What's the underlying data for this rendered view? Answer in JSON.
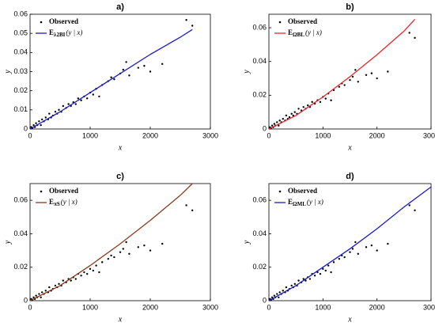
{
  "chart_data": [
    {
      "type": "scatter",
      "title": "a)",
      "xlabel": "x",
      "ylabel": "y",
      "xlim": [
        0,
        3000
      ],
      "ylim": [
        0,
        0.06
      ],
      "xticks": [
        0,
        1000,
        2000,
        3000
      ],
      "yticks": [
        0,
        0.01,
        0.02,
        0.03,
        0.04,
        0.05,
        0.06
      ],
      "series": [
        {
          "name": "Observed",
          "color": "#000000",
          "style": "points",
          "x": [
            20,
            40,
            60,
            80,
            100,
            120,
            150,
            180,
            200,
            230,
            260,
            300,
            320,
            350,
            380,
            420,
            450,
            480,
            520,
            550,
            600,
            640,
            680,
            720,
            760,
            800,
            850,
            900,
            950,
            1000,
            1050,
            1100,
            1150,
            1200,
            1300,
            1350,
            1400,
            1500,
            1550,
            1600,
            1650,
            1800,
            1900,
            2000,
            2200,
            2600,
            2700
          ],
          "values": [
            0.001,
            0.0005,
            0.002,
            0.001,
            0.003,
            0.002,
            0.004,
            0.002,
            0.005,
            0.004,
            0.006,
            0.005,
            0.008,
            0.006,
            0.007,
            0.009,
            0.008,
            0.01,
            0.009,
            0.012,
            0.011,
            0.013,
            0.012,
            0.014,
            0.013,
            0.016,
            0.015,
            0.017,
            0.016,
            0.019,
            0.018,
            0.021,
            0.017,
            0.023,
            0.025,
            0.027,
            0.026,
            0.029,
            0.031,
            0.035,
            0.028,
            0.032,
            0.033,
            0.03,
            0.034,
            0.057,
            0.054
          ]
        },
        {
          "name": "E",
          "name_sub": "λ2BI",
          "name_suffix": "(y | x)",
          "color": "#1a1acc",
          "style": "line",
          "x": [
            0,
            500,
            1000,
            1500,
            2000,
            2500,
            2700
          ],
          "values": [
            0,
            0.009,
            0.019,
            0.029,
            0.039,
            0.048,
            0.052
          ]
        }
      ]
    },
    {
      "type": "scatter",
      "title": "b)",
      "xlabel": "x",
      "ylabel": "y",
      "xlim": [
        0,
        3000
      ],
      "ylim": [
        0,
        0.068
      ],
      "xticks": [
        0,
        1000,
        2000,
        3000
      ],
      "yticks": [
        0,
        0.02,
        0.04,
        0.06
      ],
      "series": [
        {
          "name": "Observed",
          "color": "#000000",
          "style": "points",
          "x": [
            20,
            40,
            60,
            80,
            100,
            120,
            150,
            180,
            200,
            230,
            260,
            300,
            320,
            350,
            380,
            420,
            450,
            480,
            520,
            550,
            600,
            640,
            680,
            720,
            760,
            800,
            850,
            900,
            950,
            1000,
            1050,
            1100,
            1150,
            1200,
            1300,
            1350,
            1400,
            1500,
            1550,
            1600,
            1650,
            1800,
            1900,
            2000,
            2200,
            2600,
            2700
          ],
          "values": [
            0.001,
            0.0005,
            0.002,
            0.001,
            0.003,
            0.002,
            0.004,
            0.002,
            0.005,
            0.004,
            0.006,
            0.005,
            0.008,
            0.006,
            0.007,
            0.009,
            0.008,
            0.01,
            0.009,
            0.012,
            0.011,
            0.013,
            0.012,
            0.014,
            0.013,
            0.016,
            0.015,
            0.017,
            0.016,
            0.019,
            0.018,
            0.021,
            0.017,
            0.023,
            0.025,
            0.027,
            0.026,
            0.029,
            0.031,
            0.035,
            0.028,
            0.032,
            0.033,
            0.03,
            0.034,
            0.057,
            0.054
          ]
        },
        {
          "name": "E",
          "name_sub": "ΩBL",
          "name_suffix": "(y | x)",
          "color": "#e8262b",
          "style": "line",
          "x": [
            0,
            500,
            1000,
            1500,
            2000,
            2500,
            2700
          ],
          "values": [
            0,
            0.008,
            0.019,
            0.031,
            0.044,
            0.058,
            0.065
          ]
        }
      ]
    },
    {
      "type": "scatter",
      "title": "c)",
      "xlabel": "x",
      "ylabel": "y",
      "xlim": [
        0,
        3000
      ],
      "ylim": [
        0,
        0.07
      ],
      "xticks": [
        0,
        1000,
        2000,
        3000
      ],
      "yticks": [
        0,
        0.02,
        0.04,
        0.06
      ],
      "series": [
        {
          "name": "Observed",
          "color": "#000000",
          "style": "points",
          "x": [
            20,
            40,
            60,
            80,
            100,
            120,
            150,
            180,
            200,
            230,
            260,
            300,
            320,
            350,
            380,
            420,
            450,
            480,
            520,
            550,
            600,
            640,
            680,
            720,
            760,
            800,
            850,
            900,
            950,
            1000,
            1050,
            1100,
            1150,
            1200,
            1300,
            1350,
            1400,
            1500,
            1550,
            1600,
            1650,
            1800,
            1900,
            2000,
            2200,
            2600,
            2700
          ],
          "values": [
            0.001,
            0.0005,
            0.002,
            0.001,
            0.003,
            0.002,
            0.004,
            0.002,
            0.005,
            0.004,
            0.006,
            0.005,
            0.008,
            0.006,
            0.007,
            0.009,
            0.008,
            0.01,
            0.009,
            0.012,
            0.011,
            0.013,
            0.012,
            0.014,
            0.013,
            0.016,
            0.015,
            0.017,
            0.016,
            0.019,
            0.018,
            0.021,
            0.017,
            0.023,
            0.025,
            0.027,
            0.026,
            0.029,
            0.031,
            0.035,
            0.028,
            0.032,
            0.033,
            0.03,
            0.034,
            0.057,
            0.054
          ]
        },
        {
          "name": "E",
          "name_sub": "πS",
          "name_suffix": "(y | x)",
          "color": "#8b3a1a",
          "style": "line",
          "x": [
            0,
            500,
            1000,
            1500,
            2000,
            2500,
            2700
          ],
          "values": [
            0,
            0.009,
            0.021,
            0.034,
            0.048,
            0.063,
            0.07
          ]
        }
      ]
    },
    {
      "type": "scatter",
      "title": "d)",
      "xlabel": "x",
      "ylabel": "y",
      "xlim": [
        0,
        3000
      ],
      "ylim": [
        0,
        0.07
      ],
      "xticks": [
        0,
        1000,
        2000,
        3000
      ],
      "yticks": [
        0,
        0.02,
        0.04,
        0.06
      ],
      "series": [
        {
          "name": "Observed",
          "color": "#000000",
          "style": "points",
          "x": [
            20,
            40,
            60,
            80,
            100,
            120,
            150,
            180,
            200,
            230,
            260,
            300,
            320,
            350,
            380,
            420,
            450,
            480,
            520,
            550,
            600,
            640,
            680,
            720,
            760,
            800,
            850,
            900,
            950,
            1000,
            1050,
            1100,
            1150,
            1200,
            1300,
            1350,
            1400,
            1500,
            1550,
            1600,
            1650,
            1800,
            1900,
            2000,
            2200,
            2600,
            2700
          ],
          "values": [
            0.001,
            0.0005,
            0.002,
            0.001,
            0.003,
            0.002,
            0.004,
            0.002,
            0.005,
            0.004,
            0.006,
            0.005,
            0.008,
            0.006,
            0.007,
            0.009,
            0.008,
            0.01,
            0.009,
            0.012,
            0.011,
            0.013,
            0.012,
            0.014,
            0.013,
            0.016,
            0.015,
            0.017,
            0.016,
            0.019,
            0.018,
            0.021,
            0.017,
            0.023,
            0.025,
            0.027,
            0.026,
            0.029,
            0.031,
            0.035,
            0.028,
            0.032,
            0.033,
            0.03,
            0.034,
            0.057,
            0.054
          ]
        },
        {
          "name": "E",
          "name_sub": "ΩML",
          "name_suffix": "(y | x)",
          "color": "#1a1acc",
          "style": "line",
          "x": [
            0,
            500,
            1000,
            1500,
            2000,
            2500,
            3000
          ],
          "values": [
            0,
            0.009,
            0.02,
            0.031,
            0.043,
            0.056,
            0.068
          ]
        }
      ]
    }
  ]
}
